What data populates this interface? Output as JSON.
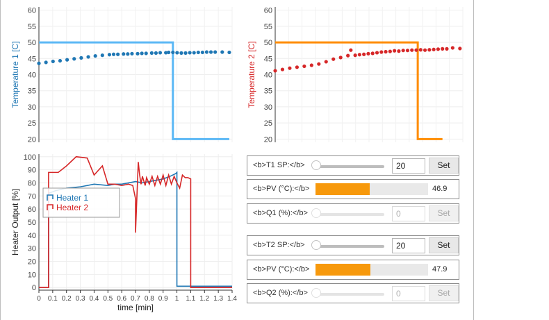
{
  "colors": {
    "sp1": "#5bb8f5",
    "pv1": "#1f77b4",
    "sp2": "#ff8c00",
    "pv2": "#d62728",
    "heater1": "#1f77b4",
    "heater2": "#d62728",
    "pv_bar": "#f7990c"
  },
  "chart_data": [
    {
      "type": "line",
      "ylabel": "Temperature 1 [C]",
      "ylim": [
        19,
        61
      ],
      "yticks": [
        "20",
        "25",
        "30",
        "35",
        "40",
        "45",
        "50",
        "55",
        "60"
      ],
      "grid": true,
      "series": [
        {
          "role": "setpoint",
          "values_xy": [
            [
              0,
              50
            ],
            [
              0.95,
              50
            ],
            [
              0.95,
              20
            ],
            [
              1.35,
              20
            ]
          ]
        },
        {
          "role": "measured",
          "values_xy": [
            [
              0,
              43.5
            ],
            [
              0.05,
              43.8
            ],
            [
              0.1,
              44.1
            ],
            [
              0.15,
              44.3
            ],
            [
              0.2,
              44.6
            ],
            [
              0.25,
              44.9
            ],
            [
              0.3,
              45.2
            ],
            [
              0.35,
              45.5
            ],
            [
              0.4,
              45.8
            ],
            [
              0.45,
              46.0
            ],
            [
              0.5,
              46.2
            ],
            [
              0.53,
              46.3
            ],
            [
              0.56,
              46.3
            ],
            [
              0.6,
              46.4
            ],
            [
              0.63,
              46.4
            ],
            [
              0.66,
              46.5
            ],
            [
              0.7,
              46.5
            ],
            [
              0.73,
              46.6
            ],
            [
              0.76,
              46.6
            ],
            [
              0.8,
              46.7
            ],
            [
              0.83,
              46.7
            ],
            [
              0.86,
              46.8
            ],
            [
              0.9,
              46.8
            ],
            [
              0.92,
              46.9
            ],
            [
              0.95,
              46.9
            ],
            [
              0.98,
              46.8
            ],
            [
              1.01,
              46.7
            ],
            [
              1.04,
              46.7
            ],
            [
              1.07,
              46.8
            ],
            [
              1.1,
              46.8
            ],
            [
              1.13,
              46.9
            ],
            [
              1.16,
              46.9
            ],
            [
              1.19,
              47.0
            ],
            [
              1.22,
              47.0
            ],
            [
              1.25,
              47.0
            ],
            [
              1.3,
              47.0
            ],
            [
              1.35,
              46.9
            ]
          ]
        }
      ]
    },
    {
      "type": "line",
      "ylabel": "Temperature 2 [C]",
      "ylim": [
        19,
        61
      ],
      "yticks": [
        "20",
        "25",
        "30",
        "35",
        "40",
        "45",
        "50",
        "55",
        "60"
      ],
      "grid": true,
      "series": [
        {
          "role": "setpoint",
          "values_xy": [
            [
              0,
              50
            ],
            [
              0.98,
              50
            ],
            [
              0.98,
              20
            ],
            [
              1.15,
              20
            ]
          ]
        },
        {
          "role": "measured",
          "values_xy": [
            [
              0,
              41.2
            ],
            [
              0.05,
              41.6
            ],
            [
              0.1,
              42.0
            ],
            [
              0.15,
              42.3
            ],
            [
              0.2,
              42.6
            ],
            [
              0.25,
              42.9
            ],
            [
              0.3,
              43.3
            ],
            [
              0.35,
              44.0
            ],
            [
              0.4,
              44.8
            ],
            [
              0.45,
              45.3
            ],
            [
              0.5,
              45.9
            ],
            [
              0.52,
              47.6
            ],
            [
              0.55,
              46.0
            ],
            [
              0.58,
              46.2
            ],
            [
              0.61,
              46.3
            ],
            [
              0.64,
              46.5
            ],
            [
              0.67,
              46.6
            ],
            [
              0.7,
              46.8
            ],
            [
              0.73,
              47.0
            ],
            [
              0.76,
              47.1
            ],
            [
              0.79,
              47.2
            ],
            [
              0.82,
              47.4
            ],
            [
              0.85,
              47.3
            ],
            [
              0.88,
              47.5
            ],
            [
              0.91,
              47.5
            ],
            [
              0.94,
              47.6
            ],
            [
              0.97,
              47.6
            ],
            [
              1.0,
              47.7
            ],
            [
              1.03,
              47.6
            ],
            [
              1.06,
              47.7
            ],
            [
              1.09,
              47.8
            ],
            [
              1.12,
              47.9
            ],
            [
              1.15,
              48.0
            ],
            [
              1.18,
              48.0
            ],
            [
              1.22,
              48.3
            ],
            [
              1.27,
              48.1
            ]
          ]
        }
      ]
    },
    {
      "type": "line",
      "xlabel": "time [min]",
      "ylabel": "Heater Output [%]",
      "xlim": [
        0,
        1.4
      ],
      "ylim": [
        -2,
        102
      ],
      "xticks": [
        "0",
        "0.1",
        "0.2",
        "0.3",
        "0.4",
        "0.5",
        "0.6",
        "0.7",
        "0.8",
        "0.9",
        "1",
        "1.1",
        "1.2",
        "1.3",
        "1.4"
      ],
      "yticks": [
        "0",
        "10",
        "20",
        "30",
        "40",
        "50",
        "60",
        "70",
        "80",
        "90",
        "100"
      ],
      "grid": true,
      "legend": "upper-left",
      "series": [
        {
          "name": "Heater 1",
          "values_xy": [
            [
              0,
              0
            ],
            [
              0.07,
              0
            ],
            [
              0.07,
              72
            ],
            [
              0.12,
              74
            ],
            [
              0.2,
              76
            ],
            [
              0.3,
              77
            ],
            [
              0.35,
              78
            ],
            [
              0.4,
              79
            ],
            [
              0.5,
              78
            ],
            [
              0.55,
              79
            ],
            [
              0.6,
              79
            ],
            [
              0.65,
              80
            ],
            [
              0.7,
              81
            ],
            [
              0.75,
              80
            ],
            [
              0.8,
              81
            ],
            [
              0.85,
              82
            ],
            [
              0.9,
              83
            ],
            [
              0.95,
              85
            ],
            [
              0.99,
              87
            ],
            [
              1.0,
              88
            ],
            [
              1.0,
              1
            ],
            [
              1.4,
              1
            ]
          ]
        },
        {
          "name": "Heater 2",
          "values_xy": [
            [
              0,
              0
            ],
            [
              0.07,
              0
            ],
            [
              0.07,
              88
            ],
            [
              0.1,
              88
            ],
            [
              0.14,
              88
            ],
            [
              0.2,
              93
            ],
            [
              0.27,
              100
            ],
            [
              0.35,
              99
            ],
            [
              0.4,
              86
            ],
            [
              0.46,
              93
            ],
            [
              0.5,
              79
            ],
            [
              0.55,
              79
            ],
            [
              0.6,
              78
            ],
            [
              0.65,
              79
            ],
            [
              0.68,
              78
            ],
            [
              0.7,
              68
            ],
            [
              0.7,
              42
            ],
            [
              0.72,
              96
            ],
            [
              0.73,
              86
            ],
            [
              0.74,
              79
            ],
            [
              0.75,
              85
            ],
            [
              0.77,
              78
            ],
            [
              0.78,
              84
            ],
            [
              0.8,
              79
            ],
            [
              0.82,
              85
            ],
            [
              0.84,
              78
            ],
            [
              0.86,
              85
            ],
            [
              0.88,
              79
            ],
            [
              0.9,
              86
            ],
            [
              0.92,
              78
            ],
            [
              0.94,
              86
            ],
            [
              0.96,
              79
            ],
            [
              0.98,
              85
            ],
            [
              1.0,
              80
            ],
            [
              1.02,
              76
            ],
            [
              1.04,
              86
            ],
            [
              1.06,
              84
            ],
            [
              1.08,
              84
            ],
            [
              1.1,
              83
            ],
            [
              1.1,
              0
            ],
            [
              1.4,
              0
            ]
          ]
        }
      ]
    }
  ],
  "controls": [
    {
      "kind": "slider",
      "label": "<b>T1 SP:</b>",
      "value": "20",
      "button": "Set",
      "disabled": false
    },
    {
      "kind": "pv",
      "label": "<b>PV (°C):</b>",
      "value": "46.9",
      "fraction": 0.48
    },
    {
      "kind": "slider",
      "label": "<b>Q1 (%):</b>",
      "value": "0",
      "button": "Set",
      "disabled": true
    },
    {
      "kind": "slider",
      "label": "<b>T2 SP:</b>",
      "value": "20",
      "button": "Set",
      "disabled": false
    },
    {
      "kind": "pv",
      "label": "<b>PV (°C):</b>",
      "value": "47.9",
      "fraction": 0.49
    },
    {
      "kind": "slider",
      "label": "<b>Q2 (%):</b>",
      "value": "0",
      "button": "Set",
      "disabled": true
    }
  ]
}
